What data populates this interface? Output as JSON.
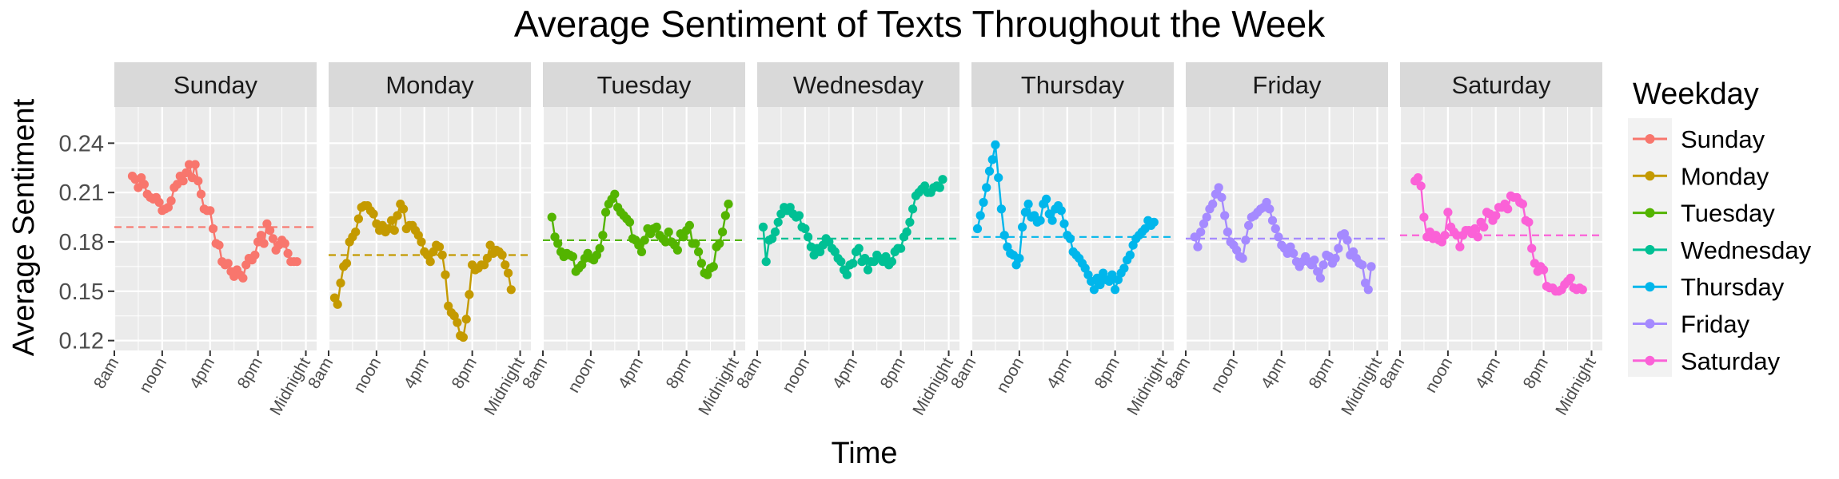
{
  "chart_data": {
    "type": "line",
    "title": "Average Sentiment of Texts Throughout the Week",
    "xlabel": "Time",
    "ylabel": "Average Sentiment",
    "ylim": [
      0.114,
      0.262
    ],
    "xlim": [
      8,
      24.9
    ],
    "y_ticks": [
      0.12,
      0.15,
      0.18,
      0.21,
      0.24
    ],
    "y_tick_labels": [
      "0.12",
      "0.15",
      "0.18",
      "0.21",
      "0.24"
    ],
    "x_ticks": [
      8,
      12,
      16,
      20,
      24
    ],
    "x_tick_labels": [
      "8am",
      "noon",
      "4pm",
      "8pm",
      "Midnight"
    ],
    "grid": true,
    "legend": {
      "title": "Weekday",
      "position": "right"
    },
    "facets": [
      "Sunday",
      "Monday",
      "Tuesday",
      "Wednesday",
      "Thursday",
      "Friday",
      "Saturday"
    ],
    "series": [
      {
        "name": "Sunday",
        "color": "#F8766D",
        "mean": 0.189,
        "x": [
          9.5,
          9.75,
          10,
          10.25,
          10.5,
          10.75,
          11,
          11.25,
          11.5,
          11.75,
          12,
          12.25,
          12.5,
          12.75,
          13,
          13.25,
          13.5,
          13.75,
          14,
          14.25,
          14.5,
          14.75,
          15,
          15.25,
          15.5,
          15.75,
          16,
          16.25,
          16.5,
          16.75,
          17,
          17.25,
          17.5,
          17.75,
          18,
          18.25,
          18.5,
          18.75,
          19,
          19.25,
          19.5,
          19.75,
          20,
          20.25,
          20.5,
          20.75,
          21,
          21.25,
          21.5,
          21.75,
          22,
          22.25,
          22.5,
          22.75,
          23,
          23.25
        ],
        "values": [
          0.22,
          0.218,
          0.213,
          0.219,
          0.215,
          0.209,
          0.207,
          0.206,
          0.207,
          0.204,
          0.199,
          0.2,
          0.201,
          0.205,
          0.213,
          0.215,
          0.22,
          0.217,
          0.222,
          0.227,
          0.219,
          0.227,
          0.217,
          0.209,
          0.2,
          0.199,
          0.199,
          0.188,
          0.179,
          0.178,
          0.168,
          0.166,
          0.167,
          0.162,
          0.159,
          0.163,
          0.16,
          0.158,
          0.166,
          0.17,
          0.169,
          0.172,
          0.18,
          0.184,
          0.179,
          0.191,
          0.187,
          0.182,
          0.175,
          0.178,
          0.181,
          0.179,
          0.173,
          0.168,
          0.168,
          0.168
        ]
      },
      {
        "name": "Monday",
        "color": "#C49A00",
        "mean": 0.172,
        "x": [
          8.5,
          8.75,
          9,
          9.25,
          9.5,
          9.75,
          10,
          10.25,
          10.5,
          10.75,
          11,
          11.25,
          11.5,
          11.75,
          12,
          12.25,
          12.5,
          12.75,
          13,
          13.25,
          13.5,
          13.75,
          14,
          14.25,
          14.5,
          14.75,
          15,
          15.25,
          15.5,
          15.75,
          16,
          16.25,
          16.5,
          16.75,
          17,
          17.25,
          17.5,
          17.75,
          18,
          18.25,
          18.5,
          18.75,
          19,
          19.25,
          19.5,
          19.75,
          20,
          20.25,
          20.5,
          20.75,
          21,
          21.25,
          21.5,
          21.75,
          22,
          22.25,
          22.5,
          22.75,
          23,
          23.25
        ],
        "values": [
          0.146,
          0.142,
          0.155,
          0.165,
          0.167,
          0.18,
          0.183,
          0.186,
          0.194,
          0.201,
          0.202,
          0.202,
          0.199,
          0.197,
          0.191,
          0.187,
          0.19,
          0.186,
          0.188,
          0.193,
          0.187,
          0.196,
          0.203,
          0.2,
          0.188,
          0.19,
          0.19,
          0.187,
          0.184,
          0.18,
          0.174,
          0.172,
          0.168,
          0.174,
          0.178,
          0.177,
          0.172,
          0.16,
          0.141,
          0.137,
          0.135,
          0.131,
          0.123,
          0.122,
          0.133,
          0.148,
          0.166,
          0.163,
          0.164,
          0.166,
          0.166,
          0.17,
          0.178,
          0.173,
          0.175,
          0.174,
          0.172,
          0.166,
          0.161,
          0.151
        ]
      },
      {
        "name": "Tuesday",
        "color": "#53B400",
        "mean": 0.181,
        "x": [
          8.75,
          9,
          9.25,
          9.5,
          9.75,
          10,
          10.25,
          10.5,
          10.75,
          11,
          11.25,
          11.5,
          11.75,
          12,
          12.25,
          12.5,
          12.75,
          13,
          13.25,
          13.5,
          13.75,
          14,
          14.25,
          14.5,
          14.75,
          15,
          15.25,
          15.5,
          15.75,
          16,
          16.25,
          16.5,
          16.75,
          17,
          17.25,
          17.5,
          17.75,
          18,
          18.25,
          18.5,
          18.75,
          19,
          19.25,
          19.5,
          19.75,
          20,
          20.25,
          20.5,
          20.75,
          21,
          21.25,
          21.5,
          21.75,
          22,
          22.25,
          22.5,
          22.75,
          23,
          23.25,
          23.5
        ],
        "values": [
          0.195,
          0.183,
          0.179,
          0.174,
          0.171,
          0.173,
          0.172,
          0.171,
          0.162,
          0.164,
          0.166,
          0.17,
          0.173,
          0.17,
          0.169,
          0.172,
          0.176,
          0.184,
          0.198,
          0.203,
          0.206,
          0.209,
          0.201,
          0.198,
          0.196,
          0.194,
          0.192,
          0.182,
          0.181,
          0.178,
          0.174,
          0.181,
          0.188,
          0.185,
          0.188,
          0.189,
          0.184,
          0.182,
          0.18,
          0.186,
          0.18,
          0.178,
          0.175,
          0.185,
          0.183,
          0.187,
          0.19,
          0.179,
          0.179,
          0.174,
          0.167,
          0.161,
          0.16,
          0.164,
          0.165,
          0.177,
          0.179,
          0.186,
          0.196,
          0.203
        ]
      },
      {
        "name": "Wednesday",
        "color": "#00C094",
        "mean": 0.182,
        "x": [
          8.5,
          8.75,
          9,
          9.25,
          9.5,
          9.75,
          10,
          10.25,
          10.5,
          10.75,
          11,
          11.25,
          11.5,
          11.75,
          12,
          12.25,
          12.5,
          12.75,
          13,
          13.25,
          13.5,
          13.75,
          14,
          14.25,
          14.5,
          14.75,
          15,
          15.25,
          15.5,
          15.75,
          16,
          16.25,
          16.5,
          16.75,
          17,
          17.25,
          17.5,
          17.75,
          18,
          18.25,
          18.5,
          18.75,
          19,
          19.25,
          19.5,
          19.75,
          20,
          20.25,
          20.5,
          20.75,
          21,
          21.25,
          21.5,
          21.75,
          22,
          22.25,
          22.5,
          22.75,
          23,
          23.25,
          23.5
        ],
        "values": [
          0.189,
          0.168,
          0.181,
          0.182,
          0.186,
          0.192,
          0.197,
          0.201,
          0.199,
          0.201,
          0.197,
          0.195,
          0.196,
          0.189,
          0.188,
          0.183,
          0.177,
          0.172,
          0.176,
          0.174,
          0.178,
          0.182,
          0.18,
          0.176,
          0.174,
          0.17,
          0.168,
          0.163,
          0.16,
          0.166,
          0.167,
          0.174,
          0.176,
          0.168,
          0.17,
          0.163,
          0.168,
          0.168,
          0.172,
          0.17,
          0.168,
          0.171,
          0.166,
          0.168,
          0.174,
          0.176,
          0.176,
          0.183,
          0.186,
          0.192,
          0.2,
          0.208,
          0.21,
          0.212,
          0.214,
          0.21,
          0.21,
          0.213,
          0.214,
          0.213,
          0.218
        ]
      },
      {
        "name": "Thursday",
        "color": "#00B6EB",
        "mean": 0.183,
        "x": [
          8.5,
          8.75,
          9,
          9.25,
          9.5,
          9.75,
          10,
          10.25,
          10.5,
          10.75,
          11,
          11.25,
          11.5,
          11.75,
          12,
          12.25,
          12.5,
          12.75,
          13,
          13.25,
          13.5,
          13.75,
          14,
          14.25,
          14.5,
          14.75,
          15,
          15.25,
          15.5,
          15.75,
          16,
          16.25,
          16.5,
          16.75,
          17,
          17.25,
          17.5,
          17.75,
          18,
          18.25,
          18.5,
          18.75,
          19,
          19.25,
          19.5,
          19.75,
          20,
          20.25,
          20.5,
          20.75,
          21,
          21.25,
          21.5,
          21.75,
          22,
          22.25,
          22.5,
          22.75,
          23,
          23.25
        ],
        "values": [
          0.188,
          0.196,
          0.204,
          0.213,
          0.223,
          0.23,
          0.239,
          0.219,
          0.2,
          0.184,
          0.177,
          0.173,
          0.172,
          0.166,
          0.17,
          0.189,
          0.198,
          0.203,
          0.195,
          0.196,
          0.192,
          0.193,
          0.203,
          0.206,
          0.197,
          0.193,
          0.2,
          0.202,
          0.199,
          0.191,
          0.184,
          0.182,
          0.174,
          0.172,
          0.17,
          0.167,
          0.164,
          0.16,
          0.156,
          0.151,
          0.158,
          0.154,
          0.161,
          0.157,
          0.156,
          0.16,
          0.151,
          0.157,
          0.161,
          0.164,
          0.169,
          0.172,
          0.178,
          0.182,
          0.184,
          0.186,
          0.188,
          0.193,
          0.19,
          0.192
        ]
      },
      {
        "name": "Friday",
        "color": "#A58AFF",
        "mean": 0.182,
        "x": [
          8.75,
          9,
          9.25,
          9.5,
          9.75,
          10,
          10.25,
          10.5,
          10.75,
          11,
          11.25,
          11.5,
          11.75,
          12,
          12.25,
          12.5,
          12.75,
          13,
          13.25,
          13.5,
          13.75,
          14,
          14.25,
          14.5,
          14.75,
          15,
          15.25,
          15.5,
          15.75,
          16,
          16.25,
          16.5,
          16.75,
          17,
          17.25,
          17.5,
          17.75,
          18,
          18.25,
          18.5,
          18.75,
          19,
          19.25,
          19.5,
          19.75,
          20,
          20.25,
          20.5,
          20.75,
          21,
          21.25,
          21.5,
          21.75,
          22,
          22.25,
          22.5,
          22.75,
          23,
          23.25,
          23.5
        ],
        "values": [
          0.183,
          0.177,
          0.186,
          0.191,
          0.195,
          0.2,
          0.203,
          0.209,
          0.213,
          0.207,
          0.196,
          0.186,
          0.18,
          0.178,
          0.175,
          0.171,
          0.17,
          0.181,
          0.19,
          0.195,
          0.196,
          0.198,
          0.2,
          0.201,
          0.204,
          0.2,
          0.193,
          0.188,
          0.183,
          0.178,
          0.176,
          0.173,
          0.177,
          0.173,
          0.168,
          0.165,
          0.168,
          0.171,
          0.168,
          0.166,
          0.169,
          0.162,
          0.158,
          0.166,
          0.172,
          0.171,
          0.167,
          0.17,
          0.176,
          0.184,
          0.185,
          0.181,
          0.172,
          0.174,
          0.17,
          0.167,
          0.166,
          0.155,
          0.151,
          0.165
        ]
      },
      {
        "name": "Saturday",
        "color": "#FB61D7",
        "mean": 0.184,
        "x": [
          9.25,
          9.5,
          9.75,
          10,
          10.25,
          10.5,
          10.75,
          11,
          11.25,
          11.5,
          11.75,
          12,
          12.25,
          12.5,
          12.75,
          13,
          13.25,
          13.5,
          13.75,
          14,
          14.25,
          14.5,
          14.75,
          15,
          15.25,
          15.5,
          15.75,
          16,
          16.25,
          16.5,
          16.75,
          17,
          17.25,
          17.5,
          17.75,
          18,
          18.25,
          18.5,
          18.75,
          19,
          19.25,
          19.5,
          19.75,
          20,
          20.25,
          20.5,
          20.75,
          21,
          21.25,
          21.5,
          21.75,
          22,
          22.25,
          22.5,
          22.75,
          23,
          23.25
        ],
        "values": [
          0.217,
          0.219,
          0.214,
          0.195,
          0.183,
          0.186,
          0.182,
          0.184,
          0.181,
          0.18,
          0.184,
          0.198,
          0.189,
          0.186,
          0.184,
          0.177,
          0.184,
          0.187,
          0.187,
          0.185,
          0.188,
          0.183,
          0.192,
          0.189,
          0.198,
          0.197,
          0.193,
          0.196,
          0.201,
          0.201,
          0.203,
          0.2,
          0.208,
          0.207,
          0.207,
          0.204,
          0.203,
          0.193,
          0.192,
          0.176,
          0.167,
          0.162,
          0.165,
          0.163,
          0.153,
          0.152,
          0.152,
          0.15,
          0.15,
          0.151,
          0.154,
          0.156,
          0.158,
          0.152,
          0.151,
          0.152,
          0.151
        ]
      }
    ]
  }
}
